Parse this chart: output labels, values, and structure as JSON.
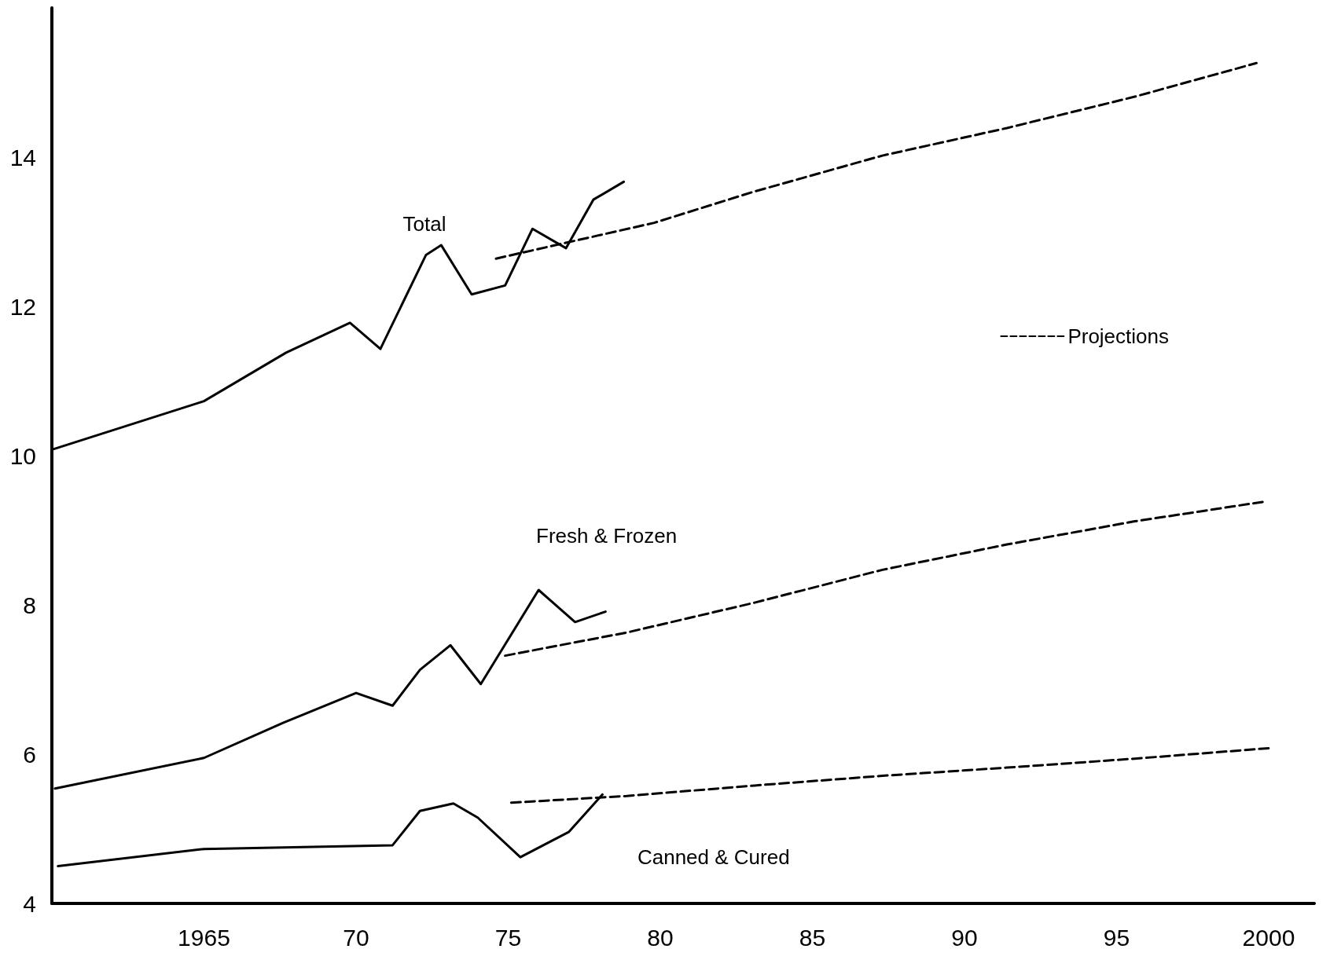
{
  "chart_data": {
    "type": "line",
    "xlim": [
      1960,
      2001.5
    ],
    "ylim": [
      4,
      16
    ],
    "xticks": [
      {
        "value": 1965,
        "label": "1965"
      },
      {
        "value": 1970,
        "label": "70"
      },
      {
        "value": 1975,
        "label": "75"
      },
      {
        "value": 1980,
        "label": "80"
      },
      {
        "value": 1985,
        "label": "85"
      },
      {
        "value": 1990,
        "label": "90"
      },
      {
        "value": 1995,
        "label": "95"
      },
      {
        "value": 2000,
        "label": "2000"
      }
    ],
    "yticks": [
      4,
      6,
      8,
      10,
      12,
      14
    ],
    "grid": false,
    "legend": "right",
    "marker": "none",
    "series": [
      {
        "name": "Total",
        "color": "#000000",
        "line_style": "solid",
        "x": [
          1960,
          1965,
          1967.7,
          1969.8,
          1970.8,
          1972.3,
          1972.8,
          1973.8,
          1974.9,
          1975.8,
          1976.9,
          1977.8,
          1978.8
        ],
        "values": [
          10.08,
          10.73,
          11.38,
          11.78,
          11.43,
          12.69,
          12.82,
          12.16,
          12.28,
          13.04,
          12.78,
          13.43,
          13.67
        ]
      },
      {
        "name": "Projections",
        "color": "#000000",
        "line_style": "dashed",
        "x": [
          1974.6,
          1979.8,
          1983.1,
          1987.3,
          1991.4,
          1995.6,
          1999.6
        ],
        "values": [
          12.64,
          13.12,
          13.54,
          14.02,
          14.39,
          14.81,
          15.26
        ]
      },
      {
        "name": "Fresh & Frozen",
        "color": "#000000",
        "line_style": "solid",
        "x": [
          1960.1,
          1965,
          1967.6,
          1970,
          1971.2,
          1972.1,
          1973.1,
          1974.1,
          1976,
          1977.2,
          1978.2
        ],
        "values": [
          5.54,
          5.95,
          6.42,
          6.82,
          6.65,
          7.13,
          7.46,
          6.94,
          8.2,
          7.77,
          7.91
        ]
      },
      {
        "color": "#000000",
        "line_style": "dashed",
        "x": [
          1974.9,
          1978.9,
          1983.1,
          1987.3,
          1991.4,
          1995.6,
          1999.8
        ],
        "values": [
          7.32,
          7.63,
          8.03,
          8.47,
          8.81,
          9.12,
          9.38
        ]
      },
      {
        "name": "Canned & Cured",
        "color": "#000000",
        "line_style": "solid",
        "x": [
          1960.2,
          1965,
          1971.2,
          1972.1,
          1973.2,
          1974,
          1975.4,
          1977,
          1978.1
        ],
        "values": [
          4.5,
          4.73,
          4.78,
          5.24,
          5.34,
          5.15,
          4.62,
          4.96,
          5.46
        ]
      },
      {
        "color": "#000000",
        "line_style": "dashed",
        "x": [
          1975.1,
          1978.9,
          1983.1,
          1987.3,
          1991.4,
          1995.6,
          2000
        ],
        "values": [
          5.35,
          5.44,
          5.58,
          5.71,
          5.82,
          5.94,
          6.08
        ]
      }
    ]
  }
}
